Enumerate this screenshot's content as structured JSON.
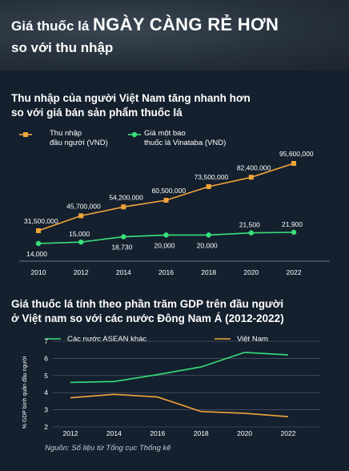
{
  "header": {
    "title_part1": "Giá thuốc lá ",
    "title_part2": "NGÀY CÀNG RẺ HƠN",
    "title_line2": "so với thu nhập"
  },
  "section1": {
    "title_line1": "Thu nhập của người Việt Nam tăng nhanh hơn",
    "title_line2": "so với giá bán sản phẩm thuốc lá"
  },
  "section2": {
    "title_line1": "Giá thuốc lá tính theo phần trăm GDP trên đầu người",
    "title_line2": "ở Việt nam so với các nước Đông Nam Á (2012-2022)"
  },
  "source": "Nguồn: Số liệu từ Tổng cục Thống kê",
  "colors": {
    "background": "#15202e",
    "orange": "#f0a53a",
    "green": "#39e07a",
    "grid": "#5a6573"
  },
  "chart_data": [
    {
      "type": "line",
      "x": [
        "2010",
        "2012",
        "2014",
        "2016",
        "2018",
        "2020",
        "2022"
      ],
      "series": [
        {
          "name": "Thu nhập đầu người (VND)",
          "legend_lines": [
            "Thu nhập",
            "đầu người (VND)"
          ],
          "color": "#f0a53a",
          "values": [
            31500000,
            45700000,
            54200000,
            60500000,
            73500000,
            82400000,
            95600000
          ],
          "labels": [
            "31,500,000",
            "45,700,000",
            "54,200,000",
            "60,500,000",
            "73,500,000",
            "82,400,000",
            "95,600,000"
          ]
        },
        {
          "name": "Giá một bao thuốc lá Vinataba (VND)",
          "legend_lines": [
            "Giá một bao",
            "thuốc lá Vinataba (VND)"
          ],
          "color": "#39e07a",
          "values": [
            14000,
            15000,
            18730,
            20000,
            20000,
            21500,
            21900
          ],
          "labels": [
            "14,000",
            "15,000",
            "18,730",
            "20,000",
            "20,000",
            "21,500",
            "21,900"
          ]
        }
      ],
      "grid": false,
      "legend": "top-left"
    },
    {
      "type": "line",
      "x": [
        2012,
        2014,
        2016,
        2018,
        2020,
        2022
      ],
      "series": [
        {
          "name": "Các nước ASEAN khác",
          "color": "#39e07a",
          "values": [
            4.6,
            4.65,
            5.05,
            5.5,
            6.35,
            6.2
          ]
        },
        {
          "name": "Việt Nam",
          "color": "#f0a53a",
          "values": [
            3.7,
            3.9,
            3.75,
            2.9,
            2.8,
            2.6
          ]
        }
      ],
      "xlim": [
        2011,
        2023
      ],
      "ylim": [
        2,
        7
      ],
      "yticks": [
        "2",
        "3",
        "4",
        "5",
        "6",
        "7"
      ],
      "ylabel": "% GDP bình quân đầu người",
      "grid": true,
      "legend": "top"
    }
  ]
}
